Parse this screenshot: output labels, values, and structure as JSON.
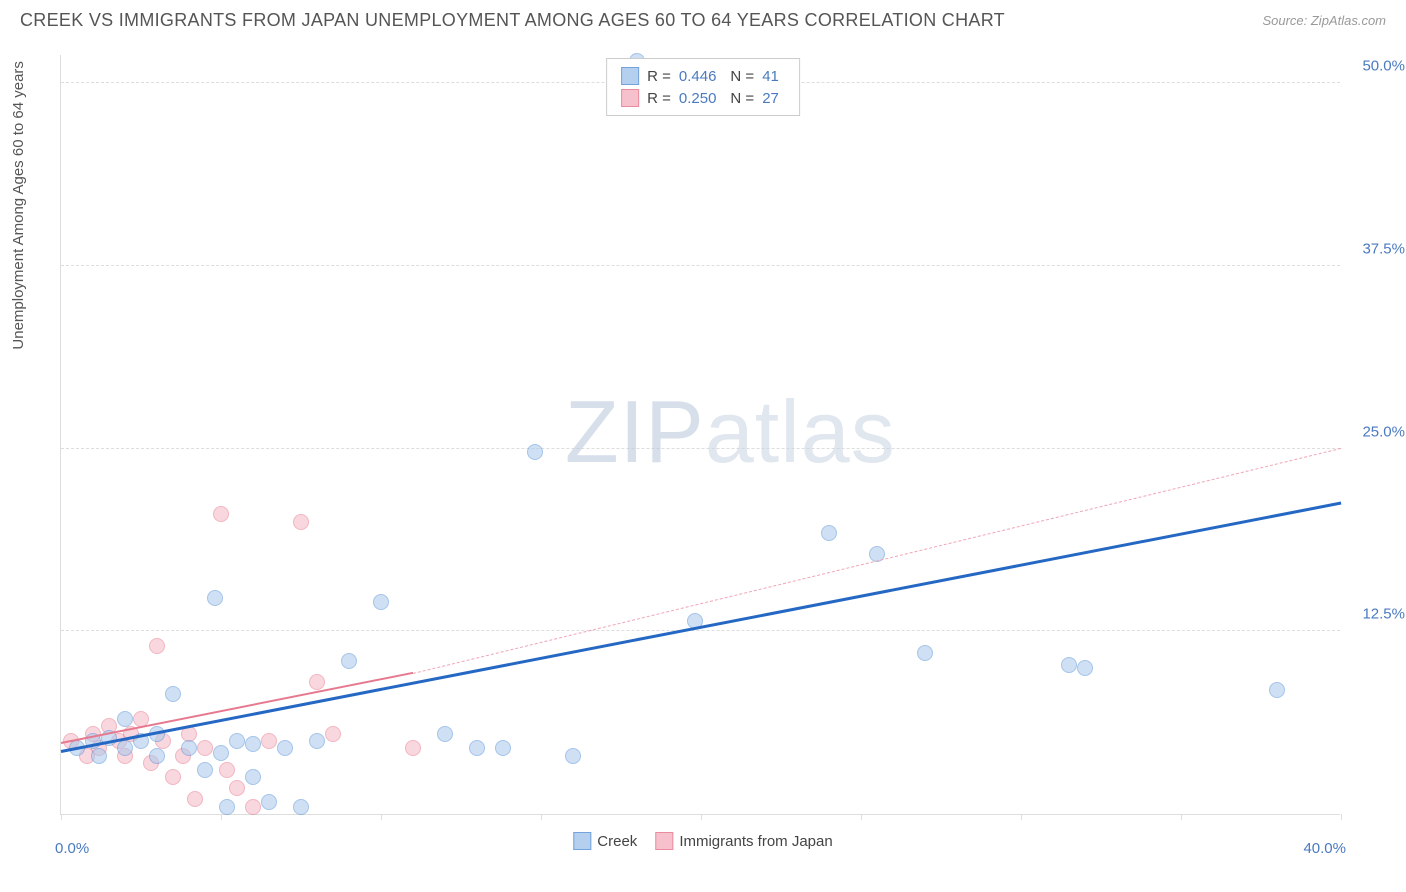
{
  "header": {
    "title": "CREEK VS IMMIGRANTS FROM JAPAN UNEMPLOYMENT AMONG AGES 60 TO 64 YEARS CORRELATION CHART",
    "source": "Source: ZipAtlas.com"
  },
  "chart": {
    "ylabel": "Unemployment Among Ages 60 to 64 years",
    "xlim": [
      0,
      40
    ],
    "ylim": [
      0,
      52
    ],
    "y_gridlines": [
      12.5,
      25.0,
      37.5,
      50.0
    ],
    "y_tick_labels": [
      "12.5%",
      "25.0%",
      "37.5%",
      "50.0%"
    ],
    "x_ticks": [
      0,
      5,
      10,
      15,
      20,
      25,
      30,
      35,
      40
    ],
    "x0_label": "0.0%",
    "x1_label": "40.0%",
    "series": {
      "creek": {
        "label": "Creek",
        "fill": "#a9c8ec",
        "stroke": "#5a94d6",
        "fill_opacity": 0.55,
        "r": 8,
        "R": "0.446",
        "N": "41",
        "trend": {
          "x1": 0,
          "y1": 4.2,
          "x2": 40,
          "y2": 21.2,
          "color": "#2468c4",
          "width": 3,
          "dash": false
        },
        "points": [
          [
            0.5,
            4.5
          ],
          [
            1.0,
            5.0
          ],
          [
            1.2,
            4.0
          ],
          [
            1.5,
            5.2
          ],
          [
            2.0,
            4.5
          ],
          [
            2.0,
            6.5
          ],
          [
            2.5,
            5.0
          ],
          [
            3.0,
            4.0
          ],
          [
            3.0,
            5.5
          ],
          [
            3.5,
            8.2
          ],
          [
            4.0,
            4.5
          ],
          [
            4.5,
            3.0
          ],
          [
            4.8,
            14.8
          ],
          [
            5.0,
            4.2
          ],
          [
            5.2,
            0.5
          ],
          [
            5.5,
            5.0
          ],
          [
            6.0,
            2.5
          ],
          [
            6.0,
            4.8
          ],
          [
            6.5,
            0.8
          ],
          [
            7.0,
            4.5
          ],
          [
            7.5,
            0.5
          ],
          [
            8.0,
            5.0
          ],
          [
            9.0,
            10.5
          ],
          [
            10.0,
            14.5
          ],
          [
            12.0,
            5.5
          ],
          [
            13.0,
            4.5
          ],
          [
            13.8,
            4.5
          ],
          [
            14.8,
            24.8
          ],
          [
            16.0,
            4.0
          ],
          [
            18.0,
            51.5
          ],
          [
            19.8,
            13.2
          ],
          [
            24.0,
            19.2
          ],
          [
            25.5,
            17.8
          ],
          [
            27.0,
            11.0
          ],
          [
            31.5,
            10.2
          ],
          [
            32.0,
            10.0
          ],
          [
            38.0,
            8.5
          ]
        ]
      },
      "japan": {
        "label": "Immigrants from Japan",
        "fill": "#f5b7c4",
        "stroke": "#e6798f",
        "fill_opacity": 0.55,
        "r": 8,
        "R": "0.250",
        "N": "27",
        "trend_solid": {
          "x1": 0,
          "y1": 4.8,
          "x2": 11,
          "y2": 9.6,
          "color": "#e6798f",
          "width": 2.5,
          "dash": false
        },
        "trend_dash": {
          "x1": 11,
          "y1": 9.6,
          "x2": 40,
          "y2": 25.0,
          "color": "#f0a5b4",
          "width": 1.5,
          "dash": true
        },
        "points": [
          [
            0.3,
            5.0
          ],
          [
            0.8,
            4.0
          ],
          [
            1.0,
            5.5
          ],
          [
            1.2,
            4.5
          ],
          [
            1.5,
            6.0
          ],
          [
            1.8,
            5.0
          ],
          [
            2.0,
            4.0
          ],
          [
            2.2,
            5.5
          ],
          [
            2.5,
            6.5
          ],
          [
            2.8,
            3.5
          ],
          [
            3.0,
            11.5
          ],
          [
            3.2,
            5.0
          ],
          [
            3.5,
            2.5
          ],
          [
            3.8,
            4.0
          ],
          [
            4.0,
            5.5
          ],
          [
            4.2,
            1.0
          ],
          [
            4.5,
            4.5
          ],
          [
            5.0,
            20.5
          ],
          [
            5.2,
            3.0
          ],
          [
            5.5,
            1.8
          ],
          [
            6.0,
            0.5
          ],
          [
            6.5,
            5.0
          ],
          [
            7.5,
            20.0
          ],
          [
            8.0,
            9.0
          ],
          [
            8.5,
            5.5
          ],
          [
            11.0,
            4.5
          ]
        ]
      }
    }
  },
  "watermark": {
    "zip": "ZIP",
    "atlas": "atlas"
  }
}
